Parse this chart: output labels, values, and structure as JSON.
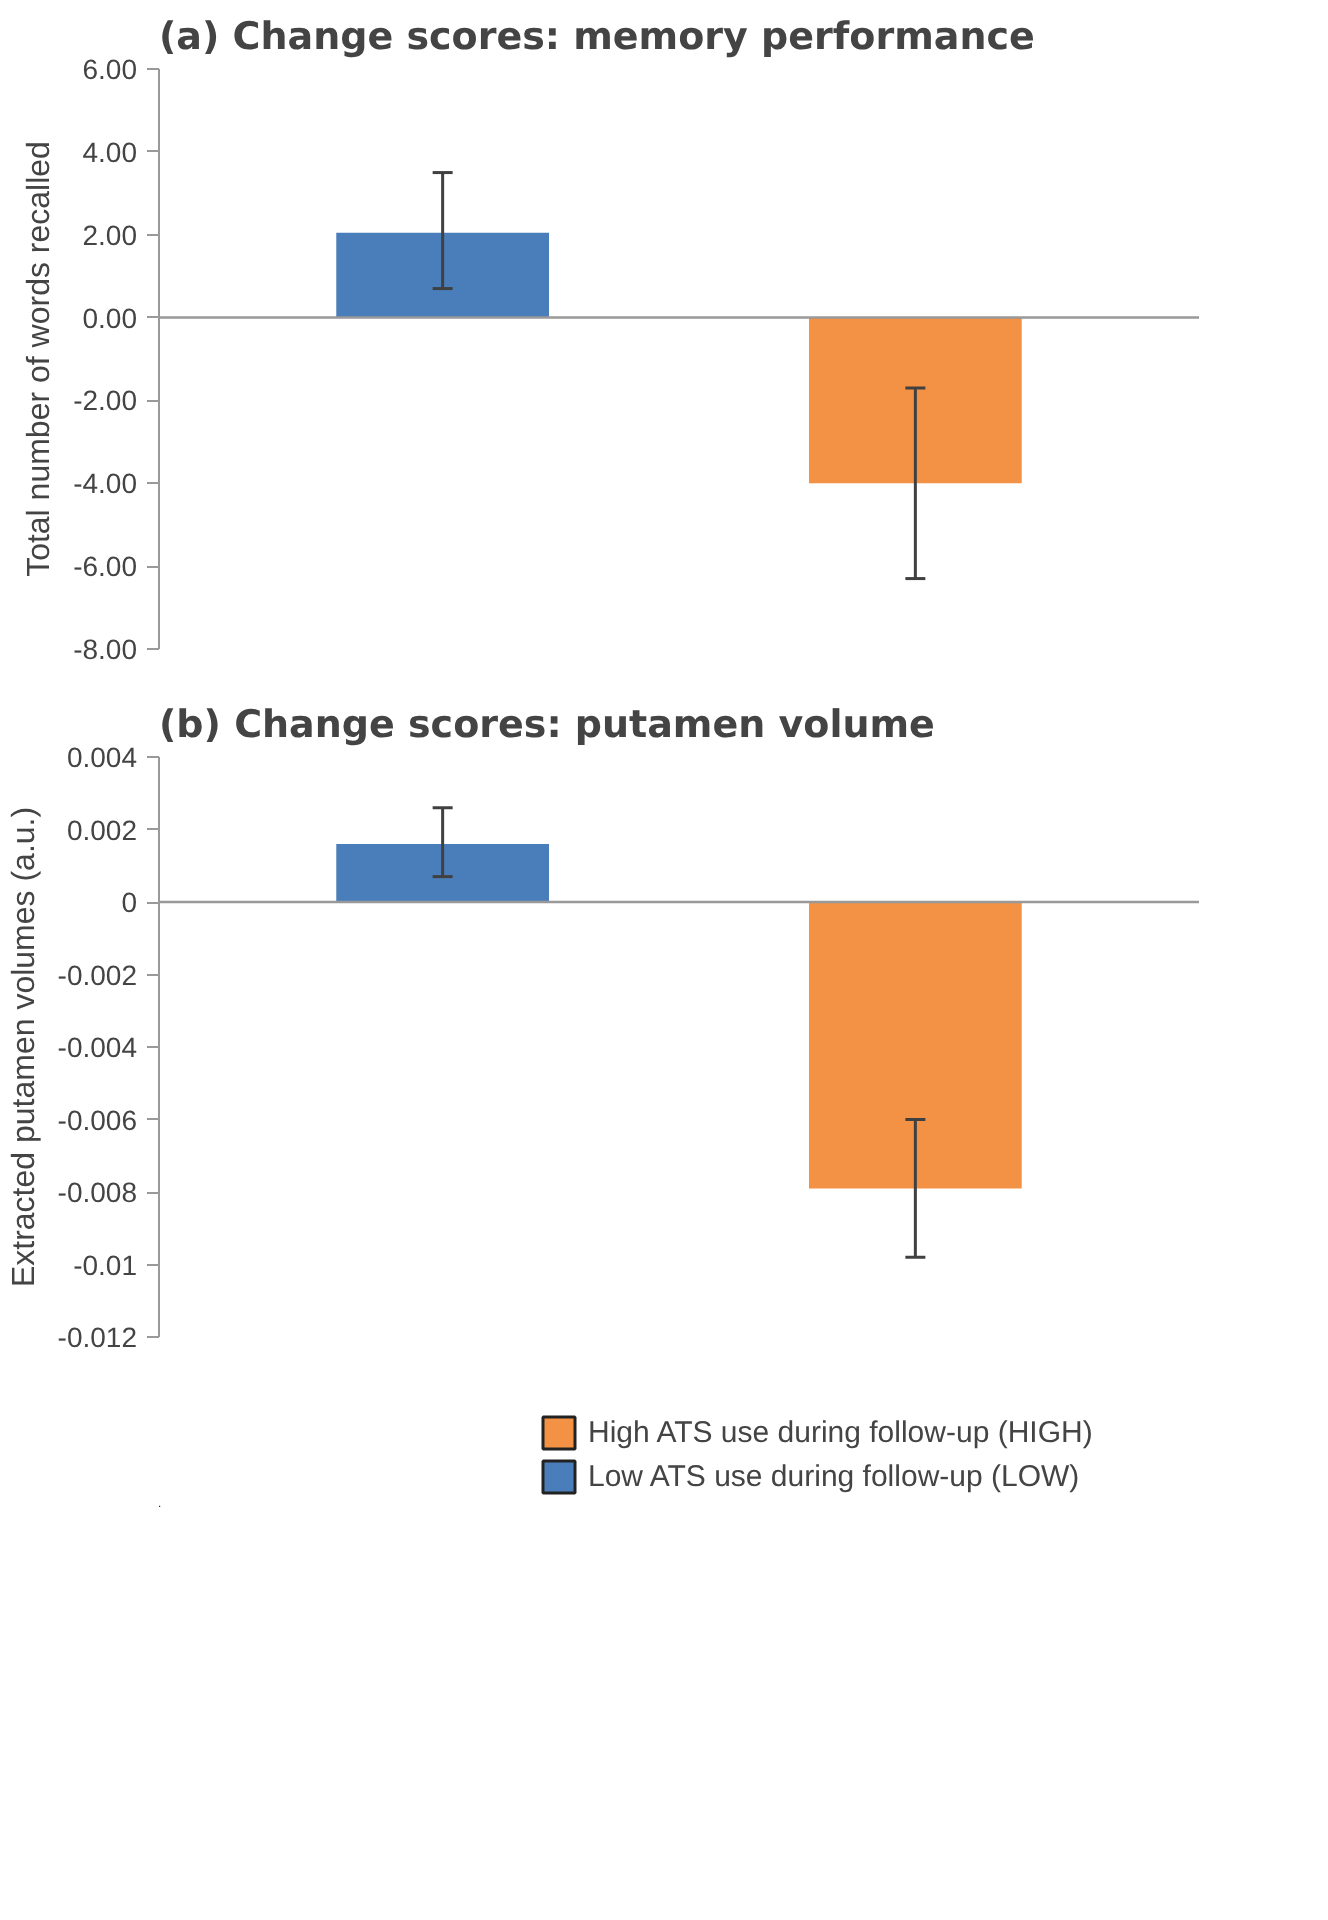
{
  "chart_data": [
    {
      "type": "bar",
      "title": "(a) Change scores: memory performance",
      "ylabel": "Total number of words recalled",
      "categories": [
        null,
        null
      ],
      "series": [
        {
          "color": "#4a7ebb",
          "values": [
            2.05,
            null
          ],
          "errors": [
            [
              0.7,
              3.5
            ],
            null
          ]
        },
        {
          "color": "#f39244",
          "values": [
            null,
            -4.0
          ],
          "errors": [
            null,
            [
              -6.3,
              -1.7
            ]
          ]
        }
      ],
      "ylim": [
        -8,
        6
      ],
      "yticks": [
        {
          "value": -8,
          "label": "-8.00"
        },
        {
          "value": -6,
          "label": "-6.00"
        },
        {
          "value": -4,
          "label": "-4.00"
        },
        {
          "value": -2,
          "label": "-2.00"
        },
        {
          "value": 0,
          "label": "0.00"
        },
        {
          "value": 2,
          "label": "2.00"
        },
        {
          "value": 4,
          "label": "4.00"
        },
        {
          "value": 6,
          "label": "6.00"
        }
      ],
      "tick_labels": "y"
    },
    {
      "type": "bar",
      "title": "(b) Change scores: putamen volume",
      "ylabel": "Extracted putamen volumes (a.u.)",
      "categories": [
        null,
        null
      ],
      "series": [
        {
          "name": "High ATS use during follow-up (HIGH)",
          "color": "#f39244",
          "values": [
            null,
            -0.0079
          ],
          "errors": [
            null,
            [
              -0.0098,
              -0.006
            ]
          ]
        },
        {
          "name": "Low ATS use during follow-up (LOW)",
          "color": "#4a7ebb",
          "values": [
            0.0016,
            null
          ],
          "errors": [
            [
              0.0007,
              0.0026
            ],
            null
          ]
        }
      ],
      "ylim": [
        -0.012,
        0.004
      ],
      "yticks": [
        -0.012,
        -0.01,
        -0.008,
        -0.006,
        -0.004,
        -0.002,
        0,
        0.002,
        0.004
      ],
      "tick_labels": "y",
      "legend": "bottom"
    }
  ]
}
